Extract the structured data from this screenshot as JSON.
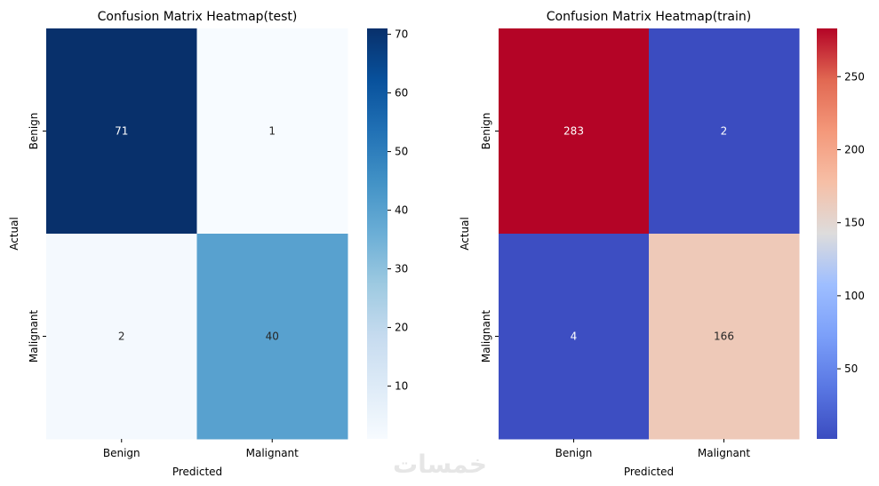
{
  "chart_data": [
    {
      "type": "heatmap",
      "title": "Confusion Matrix Heatmap(test)",
      "xlabel": "Predicted",
      "ylabel": "Actual",
      "x_categories": [
        "Benign",
        "Malignant"
      ],
      "y_categories": [
        "Benign",
        "Malignant"
      ],
      "values": [
        [
          71,
          1
        ],
        [
          2,
          40
        ]
      ],
      "colormap": "Blues",
      "colorbar": {
        "min": 1,
        "max": 71,
        "ticks": [
          10,
          20,
          30,
          40,
          50,
          60,
          70
        ]
      }
    },
    {
      "type": "heatmap",
      "title": "Confusion Matrix Heatmap(train)",
      "xlabel": "Predicted",
      "ylabel": "Actual",
      "x_categories": [
        "Benign",
        "Malignant"
      ],
      "y_categories": [
        "Benign",
        "Malignant"
      ],
      "values": [
        [
          283,
          2
        ],
        [
          4,
          166
        ]
      ],
      "colormap": "coolwarm",
      "colorbar": {
        "min": 2,
        "max": 283,
        "ticks": [
          50,
          100,
          150,
          200,
          250
        ]
      }
    }
  ],
  "watermark": "خمسات"
}
